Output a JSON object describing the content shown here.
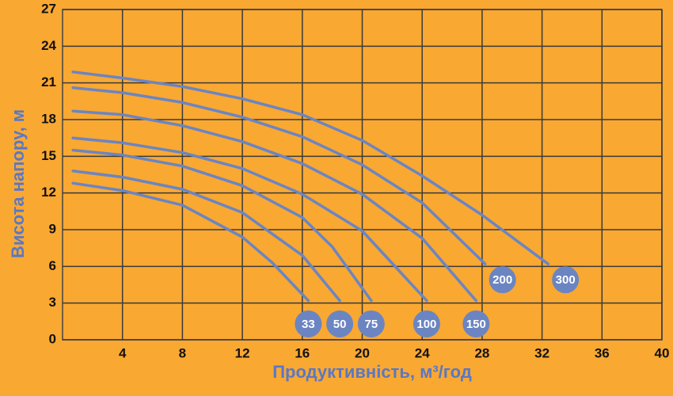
{
  "chart_data": {
    "type": "line",
    "x_label": "Продуктивність, м³/год",
    "y_label": "Висота напору, м",
    "xlim": [
      0,
      40
    ],
    "ylim": [
      0,
      27
    ],
    "xticks": [
      4,
      8,
      12,
      16,
      20,
      24,
      28,
      32,
      36,
      40
    ],
    "yticks": [
      0,
      3,
      6,
      9,
      12,
      15,
      18,
      21,
      24,
      27
    ],
    "grid": true,
    "series": [
      {
        "name": "33",
        "color": "#6b85c2",
        "x": [
          0.7,
          4,
          8,
          12,
          14,
          16.4
        ],
        "values": [
          12.8,
          12.2,
          11.0,
          8.4,
          6.3,
          3.2
        ]
      },
      {
        "name": "50",
        "color": "#6b85c2",
        "x": [
          0.7,
          4,
          8,
          12,
          16,
          18.5
        ],
        "values": [
          13.8,
          13.3,
          12.3,
          10.4,
          6.9,
          3.2
        ]
      },
      {
        "name": "75",
        "color": "#6b85c2",
        "x": [
          0.7,
          4,
          8,
          12,
          16,
          18,
          20.6
        ],
        "values": [
          15.5,
          15.1,
          14.2,
          12.6,
          10.0,
          7.6,
          3.2
        ]
      },
      {
        "name": "100",
        "color": "#6b85c2",
        "x": [
          0.7,
          4,
          8,
          12,
          16,
          20,
          24.3
        ],
        "values": [
          16.5,
          16.1,
          15.3,
          14.0,
          11.9,
          8.9,
          3.2
        ]
      },
      {
        "name": "150",
        "color": "#6b85c2",
        "x": [
          0.7,
          4,
          8,
          12,
          16,
          20,
          24,
          27.6
        ],
        "values": [
          18.7,
          18.4,
          17.5,
          16.2,
          14.4,
          11.9,
          8.3,
          3.2
        ]
      },
      {
        "name": "200",
        "color": "#6b85c2",
        "x": [
          0.7,
          4,
          8,
          12,
          16,
          20,
          24,
          28.2
        ],
        "values": [
          20.6,
          20.2,
          19.4,
          18.2,
          16.6,
          14.3,
          11.2,
          6.2
        ]
      },
      {
        "name": "300",
        "color": "#6b85c2",
        "x": [
          0.7,
          4,
          8,
          12,
          16,
          20,
          24,
          28,
          32.4
        ],
        "values": [
          21.9,
          21.4,
          20.7,
          19.7,
          18.4,
          16.3,
          13.4,
          10.2,
          6.2
        ]
      }
    ]
  }
}
